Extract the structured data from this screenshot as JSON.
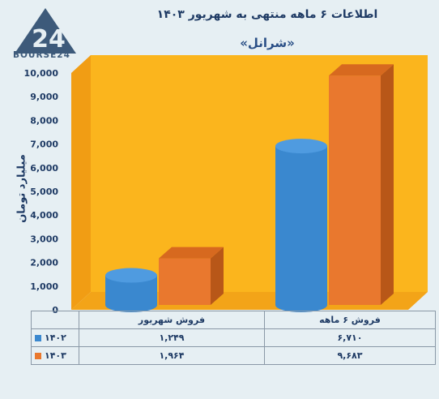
{
  "logo": {
    "mark": "24",
    "text": "BOURSE24"
  },
  "colors": {
    "series_1402": "#3a88cf",
    "series_1403": "#e9782e",
    "wall": "#f8b31c",
    "background": "#e6eff3"
  },
  "chart_data": {
    "type": "bar",
    "title": "اطلاعات ۶ ماهه منتهی به شهریور ۱۴۰۳",
    "subtitle": "«شرانل»",
    "ylabel": "میلیارد تومان",
    "categories": [
      "فروش شهریور",
      "فروش ۶ ماهه"
    ],
    "series": [
      {
        "name": "۱۴۰۲",
        "values": [
          1249,
          6710
        ],
        "labels": [
          "۱,۲۴۹",
          "۶,۷۱۰"
        ]
      },
      {
        "name": "۱۴۰۳",
        "values": [
          1964,
          9683
        ],
        "labels": [
          "۱,۹۶۴",
          "۹,۶۸۳"
        ]
      }
    ],
    "ylim": [
      0,
      10000
    ],
    "yticks": [
      0,
      1000,
      2000,
      3000,
      4000,
      5000,
      6000,
      7000,
      8000,
      9000,
      10000
    ],
    "ytick_labels": [
      "0",
      "1,000",
      "2,000",
      "3,000",
      "4,000",
      "5,000",
      "6,000",
      "7,000",
      "8,000",
      "9,000",
      "10,000"
    ],
    "grid": false,
    "legend": "data-table"
  }
}
